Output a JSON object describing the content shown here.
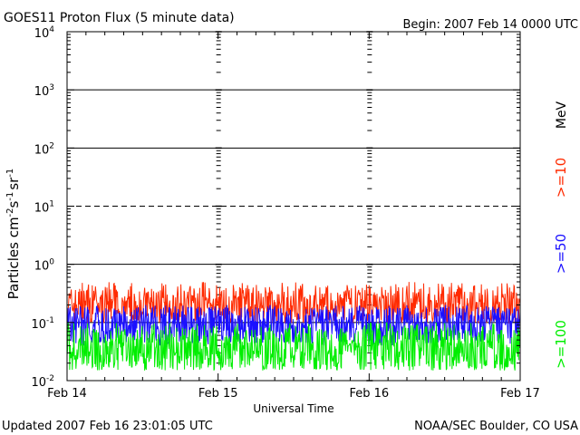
{
  "chart_data": {
    "type": "line",
    "title": "GOES11 Proton Flux (5 minute data)",
    "begin_label": "Begin: 2007 Feb 14 0000 UTC",
    "xlabel": "Universal Time",
    "ylabel_base": "Particles cm",
    "ylabel_sup1": "-2",
    "ylabel_mid1": "s",
    "ylabel_sup2": "-1",
    "ylabel_mid2": "sr",
    "ylabel_sup3": "-1",
    "y_scale": "log",
    "ylim": [
      0.01,
      10000
    ],
    "y_tick_labels": [
      {
        "value": 0.01,
        "base": "10",
        "exp": "-2"
      },
      {
        "value": 0.1,
        "base": "10",
        "exp": "-1"
      },
      {
        "value": 1,
        "base": "10",
        "exp": "0"
      },
      {
        "value": 10,
        "base": "10",
        "exp": "1"
      },
      {
        "value": 100,
        "base": "10",
        "exp": "2"
      },
      {
        "value": 1000,
        "base": "10",
        "exp": "3"
      },
      {
        "value": 10000,
        "base": "10",
        "exp": "4"
      }
    ],
    "x_range_days": [
      0,
      3
    ],
    "x_tick_labels": [
      "Feb 14",
      "Feb 15",
      "Feb 16",
      "Feb 17"
    ],
    "unit_label": "MeV",
    "series": [
      {
        "name": ">=10",
        "color": "#ff2a00",
        "typical_value": 0.2,
        "range": [
          0.1,
          0.5
        ]
      },
      {
        "name": ">=50",
        "color": "#1a10ff",
        "typical_value": 0.09,
        "range": [
          0.04,
          0.2
        ]
      },
      {
        "name": ">=100",
        "color": "#00ee00",
        "typical_value": 0.035,
        "range": [
          0.015,
          0.1
        ]
      }
    ],
    "threshold_lines": [
      {
        "value": 10,
        "style": "dashed"
      },
      {
        "value": 1,
        "style": "solid"
      },
      {
        "value": 100,
        "style": "solid"
      },
      {
        "value": 1000,
        "style": "solid"
      }
    ]
  },
  "footer": {
    "updated": "Updated 2007 Feb 16 23:01:05 UTC",
    "source": "NOAA/SEC Boulder, CO USA"
  }
}
